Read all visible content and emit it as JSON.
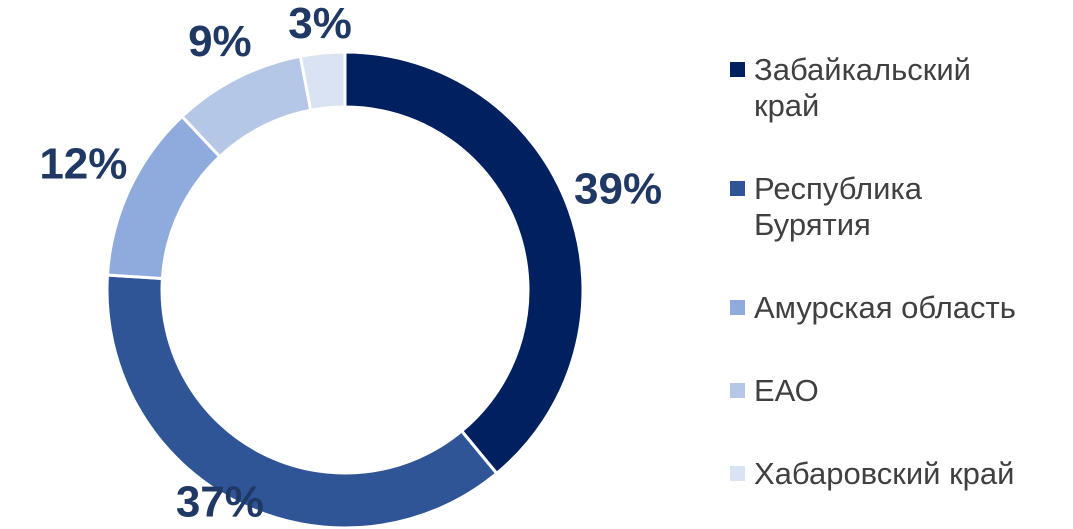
{
  "chart_data": {
    "type": "pie",
    "categories": [
      "Забайкальский край",
      "Республика Бурятия",
      "Амурская область",
      "ЕАО",
      "Хабаровский край"
    ],
    "values": [
      39,
      37,
      12,
      9,
      3
    ],
    "value_labels": [
      "39%",
      "37%",
      "12%",
      "9%",
      "3%"
    ],
    "colors": [
      "#002060",
      "#2f5597",
      "#8faadc",
      "#b4c7e7",
      "#dae3f3"
    ],
    "legend": "right"
  }
}
